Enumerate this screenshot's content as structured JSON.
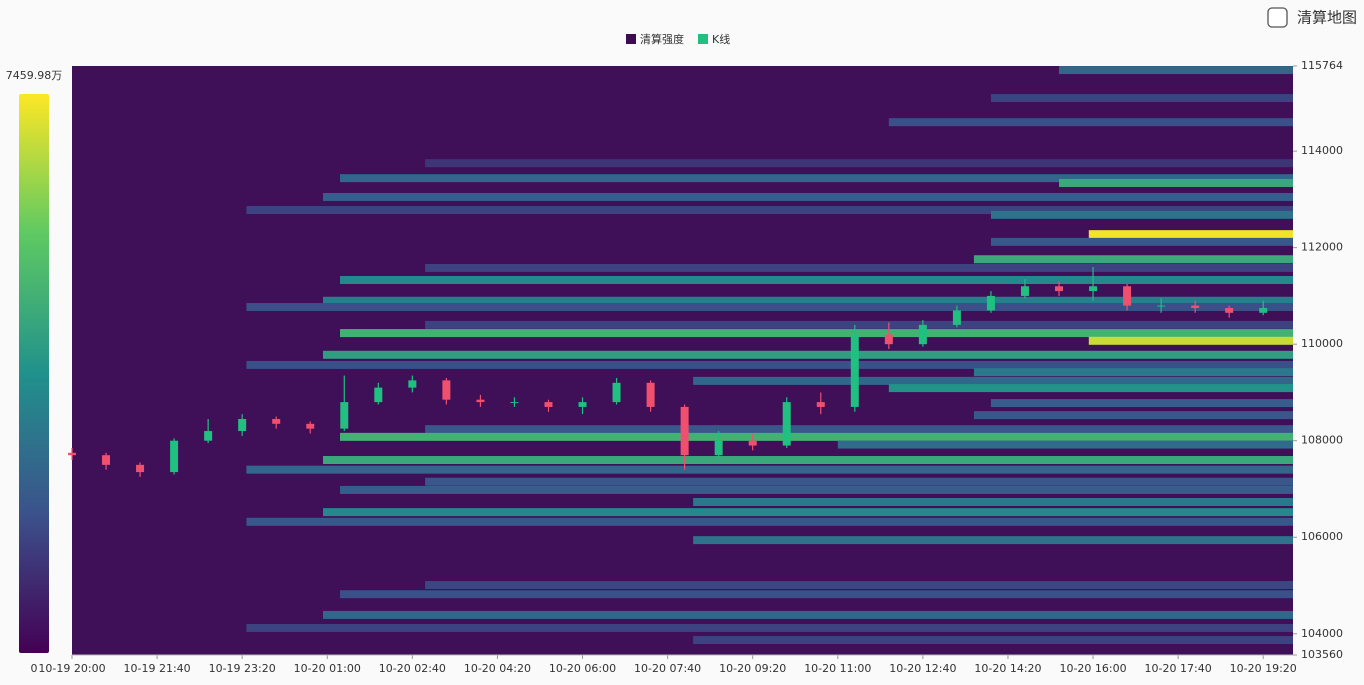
{
  "chart_data": {
    "type": "liquidation-heatmap",
    "toggle_label": "清算地图",
    "legend": [
      {
        "name": "清算强度",
        "color": "#3d0b52"
      },
      {
        "name": "K线",
        "color": "#1fc080"
      }
    ],
    "background": "#3f0f58",
    "up_color": "#1fc080",
    "down_color": "#f0506e",
    "colorbar": {
      "ticks": [
        0,
        {
          "value": 7459.98,
          "label": "7459.98万"
        }
      ]
    },
    "xlim": [
      "10-19 20:00",
      "10-20 19:55"
    ],
    "xticks": [
      "10-19 20:00",
      "10-19 21:40",
      "10-19 23:20",
      "10-20 01:00",
      "10-20 02:40",
      "10-20 04:20",
      "10-20 06:00",
      "10-20 07:40",
      "10-20 09:20",
      "10-20 11:00",
      "10-20 12:40",
      "10-20 14:20",
      "10-20 16:00",
      "10-20 17:40",
      "10-20 19:20"
    ],
    "ylim": [
      103560,
      115764
    ],
    "yticks": [
      103560,
      104000,
      106000,
      108000,
      110000,
      112000,
      114000,
      115764
    ],
    "candles": {
      "x": [
        "10-19 20:00",
        "10-19 20:40",
        "10-19 21:20",
        "10-19 22:00",
        "10-19 22:40",
        "10-19 23:20",
        "10-20 00:00",
        "10-20 00:40",
        "10-20 01:20",
        "10-20 02:00",
        "10-20 02:40",
        "10-20 03:20",
        "10-20 04:00",
        "10-20 04:40",
        "10-20 05:20",
        "10-20 06:00",
        "10-20 06:40",
        "10-20 07:20",
        "10-20 08:00",
        "10-20 08:40",
        "10-20 09:20",
        "10-20 10:00",
        "10-20 10:40",
        "10-20 11:20",
        "10-20 12:00",
        "10-20 12:40",
        "10-20 13:20",
        "10-20 14:00",
        "10-20 14:40",
        "10-20 15:20",
        "10-20 16:00",
        "10-20 16:40",
        "10-20 17:20",
        "10-20 18:00",
        "10-20 18:40",
        "10-20 19:20"
      ],
      "open": [
        107750,
        107700,
        107500,
        107350,
        108000,
        108200,
        108450,
        108350,
        108250,
        108800,
        109100,
        109250,
        108850,
        108800,
        108800,
        108700,
        108800,
        109200,
        108700,
        107700,
        108000,
        107900,
        108800,
        108700,
        110200,
        110000,
        110400,
        110700,
        111000,
        111200,
        111100,
        111200,
        110800,
        110800,
        110750,
        110650
      ],
      "high": [
        107850,
        107750,
        107550,
        108050,
        108450,
        108550,
        108500,
        108400,
        109350,
        109200,
        109350,
        109300,
        108950,
        108900,
        108850,
        108900,
        109300,
        109250,
        108750,
        108200,
        108150,
        108900,
        109000,
        110400,
        110450,
        110500,
        110800,
        111100,
        111350,
        111300,
        111600,
        111250,
        110950,
        110900,
        110800,
        110900
      ],
      "low": [
        107600,
        107400,
        107250,
        107300,
        107950,
        108100,
        108250,
        108150,
        108200,
        108750,
        109000,
        108750,
        108700,
        108700,
        108600,
        108550,
        108750,
        108600,
        107400,
        107650,
        107800,
        107850,
        108550,
        108600,
        109900,
        109950,
        110350,
        110650,
        110950,
        111000,
        110900,
        110700,
        110650,
        110650,
        110550,
        110600
      ],
      "close": [
        107700,
        107500,
        107350,
        108000,
        108200,
        108450,
        108350,
        108250,
        108800,
        109100,
        109250,
        108850,
        108800,
        108800,
        108700,
        108800,
        109200,
        108700,
        107700,
        108000,
        107900,
        108800,
        108700,
        110200,
        110000,
        110400,
        110700,
        111000,
        111200,
        111100,
        111200,
        110800,
        110800,
        110750,
        110650,
        110750
      ]
    },
    "bands": {
      "price": [
        115680,
        115100,
        114600,
        113750,
        113440,
        113340,
        113050,
        112780,
        112680,
        112280,
        112120,
        111760,
        111580,
        111330,
        110900,
        110770,
        110400,
        110230,
        110070,
        109780,
        109570,
        109420,
        109240,
        109090,
        108780,
        108530,
        108240,
        108080,
        107920,
        107600,
        107400,
        107150,
        106980,
        106730,
        106520,
        106320,
        105940,
        105010,
        104820,
        104390,
        104120,
        103870
      ],
      "start": [
        "10-20 15:20",
        "10-20 14:00",
        "10-20 12:00",
        "10-20 02:55",
        "10-20 01:15",
        "10-20 15:20",
        "10-20 00:55",
        "10-19 23:25",
        "10-20 14:00",
        "10-20 15:55",
        "10-20 14:00",
        "10-20 13:40",
        "10-20 02:55",
        "10-20 01:15",
        "10-20 00:55",
        "10-19 23:25",
        "10-20 02:55",
        "10-20 01:15",
        "10-20 15:55",
        "10-20 00:55",
        "10-19 23:25",
        "10-20 13:40",
        "10-20 08:10",
        "10-20 12:00",
        "10-20 14:00",
        "10-20 13:40",
        "10-20 02:55",
        "10-20 01:15",
        "10-20 11:00",
        "10-20 00:55",
        "10-19 23:25",
        "10-20 02:55",
        "10-20 01:15",
        "10-20 08:10",
        "10-20 00:55",
        "10-19 23:25",
        "10-20 08:10",
        "10-20 02:55",
        "10-20 01:15",
        "10-20 00:55",
        "10-19 23:25",
        "10-20 08:10"
      ],
      "intensity": [
        2500,
        1500,
        1800,
        1200,
        2500,
        4500,
        2200,
        1500,
        2800,
        7300,
        2000,
        4500,
        1500,
        3500,
        3200,
        1800,
        1500,
        4800,
        6800,
        4200,
        1800,
        3000,
        2500,
        3800,
        2200,
        2000,
        2000,
        4800,
        2600,
        4500,
        2500,
        2000,
        2200,
        3000,
        3500,
        2000,
        2800,
        1600,
        1800,
        2500,
        1500,
        1500
      ]
    }
  }
}
